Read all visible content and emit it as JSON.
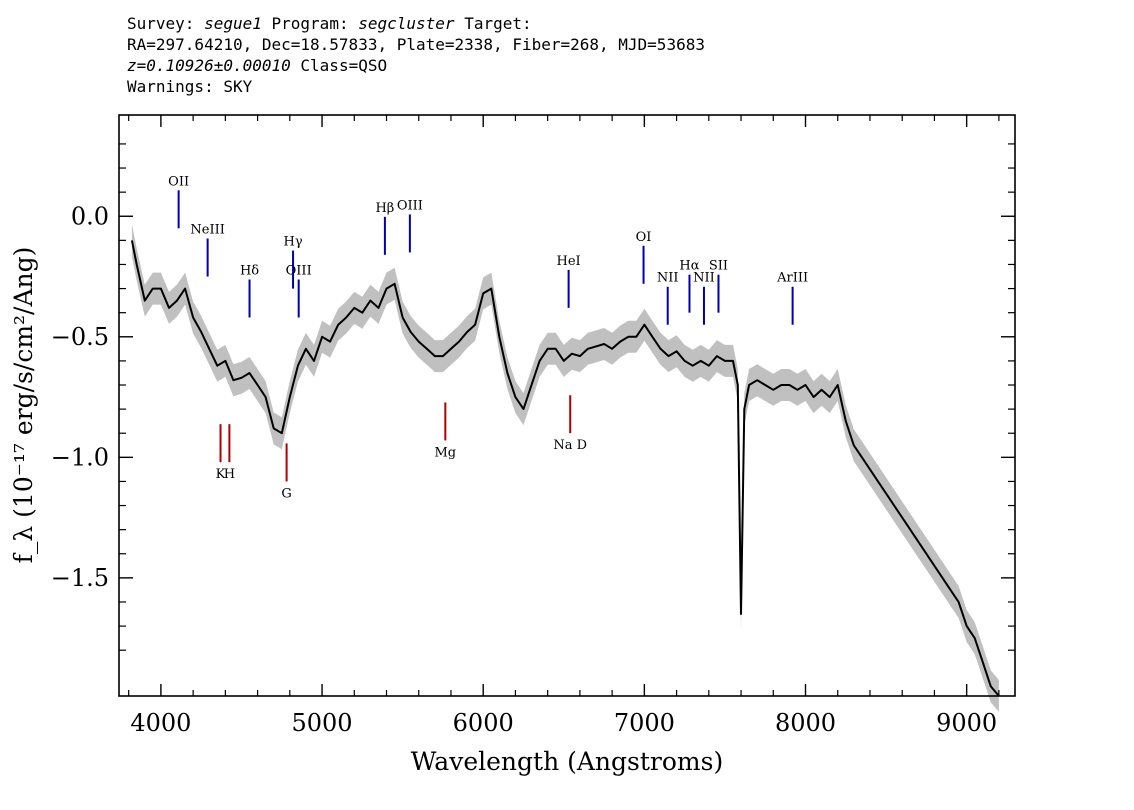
{
  "header": {
    "line1": {
      "survey_label": "Survey:",
      "survey": "segue1",
      "program_label": "Program:",
      "program": "segcluster",
      "target_label": "Target:"
    },
    "line2": "RA=297.64210, Dec=18.57833, Plate=2338, Fiber=268, MJD=53683",
    "line3": {
      "redshift": "z=0.10926±0.00010",
      "class": "Class=QSO"
    },
    "line4": "Warnings: SKY"
  },
  "chart_data": {
    "type": "line",
    "xlabel": "Wavelength (Angstroms)",
    "ylabel": "f_λ (10⁻¹⁷ erg/s/cm²/Ang)",
    "xlim": [
      3740,
      9300
    ],
    "ylim": [
      -1.99,
      0.42
    ],
    "xticks": [
      4000,
      5000,
      6000,
      7000,
      8000,
      9000
    ],
    "yticks": [
      0.0,
      -0.5,
      -1.0,
      -1.5
    ],
    "ytick_labels": [
      "0.0",
      "−0.5",
      "−1.0",
      "−1.5"
    ],
    "colors": {
      "flux": "#000000",
      "error_band": "#c0c0c0",
      "emission": "#0000b0",
      "absorption": "#b00000"
    },
    "series": [
      {
        "x": [
          3820,
          3850,
          3900,
          3950,
          4000,
          4050,
          4100,
          4150,
          4200,
          4250,
          4300,
          4350,
          4400,
          4450,
          4500,
          4550,
          4600,
          4650,
          4700,
          4750,
          4800,
          4850,
          4900,
          4950,
          5000,
          5050,
          5100,
          5150,
          5200,
          5250,
          5300,
          5350,
          5400,
          5450,
          5500,
          5550,
          5600,
          5650,
          5700,
          5750,
          5800,
          5850,
          5900,
          5950,
          6000,
          6050,
          6100,
          6150,
          6200,
          6250,
          6300,
          6350,
          6400,
          6450,
          6500,
          6550,
          6600,
          6650,
          6700,
          6750,
          6800,
          6850,
          6900,
          6950,
          7000,
          7050,
          7100,
          7150,
          7200,
          7250,
          7300,
          7350,
          7400,
          7450,
          7500,
          7550,
          7580,
          7600,
          7620,
          7650,
          7700,
          7750,
          7800,
          7850,
          7900,
          7950,
          8000,
          8050,
          8100,
          8150,
          8200,
          8250,
          8300,
          8350,
          8400,
          8450,
          8500,
          8550,
          8600,
          8650,
          8700,
          8750,
          8800,
          8850,
          8900,
          8950,
          9000,
          9050,
          9100,
          9150,
          9200
        ],
        "y": [
          -0.1,
          -0.2,
          -0.35,
          -0.3,
          -0.3,
          -0.38,
          -0.35,
          -0.3,
          -0.42,
          -0.48,
          -0.55,
          -0.62,
          -0.6,
          -0.68,
          -0.67,
          -0.65,
          -0.7,
          -0.75,
          -0.88,
          -0.9,
          -0.75,
          -0.62,
          -0.55,
          -0.6,
          -0.5,
          -0.52,
          -0.45,
          -0.42,
          -0.38,
          -0.4,
          -0.35,
          -0.38,
          -0.3,
          -0.28,
          -0.42,
          -0.48,
          -0.52,
          -0.55,
          -0.58,
          -0.58,
          -0.55,
          -0.52,
          -0.48,
          -0.45,
          -0.32,
          -0.3,
          -0.5,
          -0.65,
          -0.75,
          -0.8,
          -0.7,
          -0.6,
          -0.55,
          -0.55,
          -0.6,
          -0.57,
          -0.58,
          -0.55,
          -0.54,
          -0.53,
          -0.55,
          -0.52,
          -0.5,
          -0.5,
          -0.45,
          -0.5,
          -0.55,
          -0.58,
          -0.56,
          -0.6,
          -0.62,
          -0.6,
          -0.62,
          -0.58,
          -0.6,
          -0.6,
          -0.7,
          -1.65,
          -0.8,
          -0.7,
          -0.68,
          -0.7,
          -0.72,
          -0.7,
          -0.7,
          -0.72,
          -0.7,
          -0.75,
          -0.72,
          -0.75,
          -0.7,
          -0.85,
          -0.95,
          -1.0,
          -1.05,
          -1.1,
          -1.15,
          -1.2,
          -1.25,
          -1.3,
          -1.35,
          -1.4,
          -1.45,
          -1.5,
          -1.55,
          -1.6,
          -1.7,
          -1.75,
          -1.85,
          -1.95,
          -1.99
        ]
      }
    ],
    "emission_lines": [
      {
        "label": "OII",
        "x": 4110,
        "y": -0.05
      },
      {
        "label": "NeIII",
        "x": 4290,
        "y": -0.25
      },
      {
        "label": "Hδ",
        "x": 4550,
        "y": -0.42
      },
      {
        "label": "Hγ",
        "x": 4820,
        "y": -0.3
      },
      {
        "label": "OIII",
        "x": 4855,
        "y": -0.42
      },
      {
        "label": "Hβ",
        "x": 5390,
        "y": -0.16
      },
      {
        "label": "OIII",
        "x": 5545,
        "y": -0.15
      },
      {
        "label": "HeI",
        "x": 6530,
        "y": -0.38
      },
      {
        "label": "OI",
        "x": 6995,
        "y": -0.28
      },
      {
        "label": "NII",
        "x": 7145,
        "y": -0.45
      },
      {
        "label": "Hα",
        "x": 7280,
        "y": -0.4
      },
      {
        "label": "NII",
        "x": 7370,
        "y": -0.45
      },
      {
        "label": "SII",
        "x": 7460,
        "y": -0.4
      },
      {
        "label": "ArIII",
        "x": 7920,
        "y": -0.45
      }
    ],
    "absorption_lines": [
      {
        "label": "K",
        "x": 4370,
        "y": -1.02
      },
      {
        "label": "H",
        "x": 4425,
        "y": -1.02
      },
      {
        "label": "G",
        "x": 4780,
        "y": -1.1
      },
      {
        "label": "Mg",
        "x": 5765,
        "y": -0.93
      },
      {
        "label": "Na D",
        "x": 6540,
        "y": -0.9
      }
    ]
  }
}
